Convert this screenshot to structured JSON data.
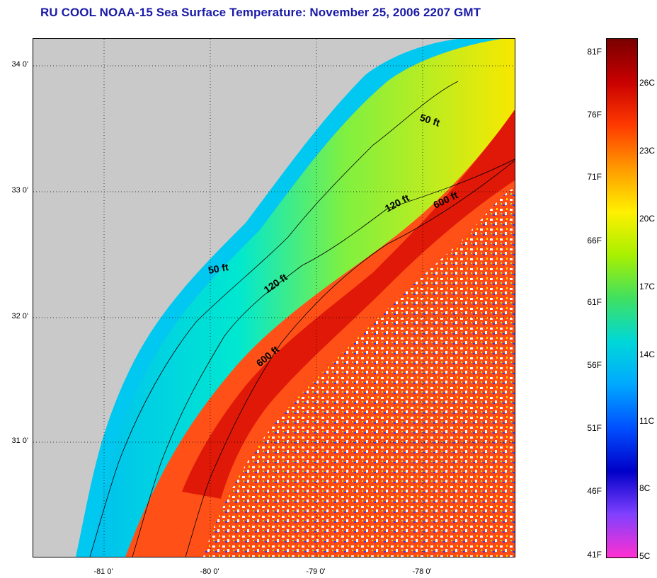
{
  "title": "RU COOL  NOAA-15  Sea Surface Temperature:  November 25, 2006 2207 GMT",
  "colors": {
    "title": "#1a1aa8",
    "land": "#c9c9c9",
    "nearshore_cold": "#00c8e0",
    "shelf_warm": "#f0e000",
    "gulfstream": "#e11a0a",
    "offshore": "#ff5a1a"
  },
  "map": {
    "lat_labels": [
      "34 0'",
      "33 0'",
      "32 0'",
      "31 0'"
    ],
    "lon_labels": [
      "-81 0'",
      "-80 0'",
      "-79 0'",
      "-78 0'"
    ],
    "isobaths": [
      {
        "label": "50 ft",
        "depth_ft": 50
      },
      {
        "label": "50 ft",
        "depth_ft": 50
      },
      {
        "label": "120 ft",
        "depth_ft": 120
      },
      {
        "label": "120 ft",
        "depth_ft": 120
      },
      {
        "label": "600 ft",
        "depth_ft": 600
      },
      {
        "label": "600 ft",
        "depth_ft": 600
      }
    ]
  },
  "colorbar": {
    "fahrenheit_labels": [
      "81F",
      "76F",
      "71F",
      "66F",
      "61F",
      "56F",
      "51F",
      "46F",
      "41F"
    ],
    "celsius_labels": [
      "26C",
      "23C",
      "20C",
      "17C",
      "14C",
      "11C",
      "8C",
      "5C"
    ],
    "gradient_colors": [
      "#7a0000",
      "#c80000",
      "#ff3a00",
      "#ff9a00",
      "#fff000",
      "#a8f000",
      "#40e060",
      "#00d8d8",
      "#00a8ff",
      "#0050ff",
      "#0000c8",
      "#8040ff",
      "#ff30d0"
    ]
  }
}
